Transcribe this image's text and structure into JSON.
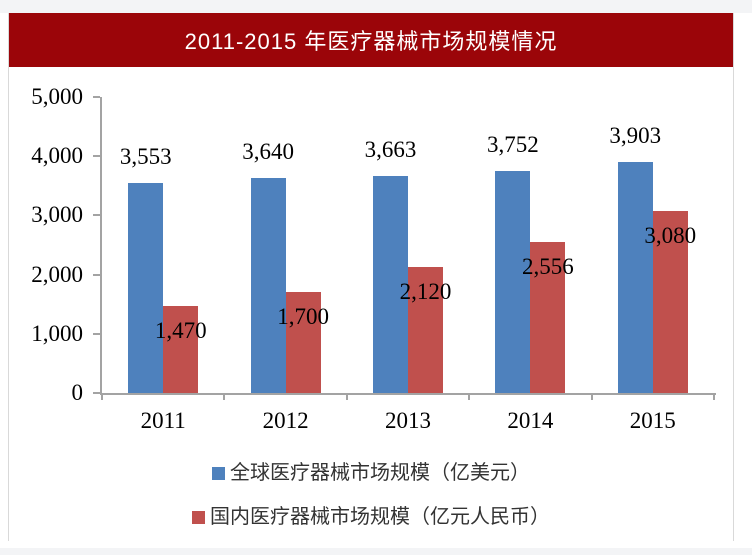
{
  "banner": {
    "title": "2011-2015 年医疗器械市场规模情况"
  },
  "chart_data": {
    "type": "bar",
    "title": "2011-2015 年医疗器械市场规模情况",
    "categories": [
      "2011",
      "2012",
      "2013",
      "2014",
      "2015"
    ],
    "series": [
      {
        "name": "全球医疗器械市场规模（亿美元）",
        "color": "#4E81BD",
        "values": [
          3553,
          3640,
          3663,
          3752,
          3903
        ],
        "data_labels": [
          "3,553",
          "3,640",
          "3,663",
          "3,752",
          "3,903"
        ],
        "label_position": "outside-end"
      },
      {
        "name": "国内医疗器械市场规模（亿元人民币）",
        "color": "#C0504D",
        "values": [
          1470,
          1700,
          2120,
          2556,
          3080
        ],
        "data_labels": [
          "1,470",
          "1,700",
          "2,120",
          "2,556",
          "3,080"
        ],
        "label_position": "inside-end"
      }
    ],
    "y_axis": {
      "min": 0,
      "max": 5000,
      "step": 1000,
      "tick_labels": [
        "0",
        "1,000",
        "2,000",
        "3,000",
        "4,000",
        "5,000"
      ]
    },
    "grid": false,
    "legend_position": "bottom",
    "colors": {
      "banner_background": "#9B0509",
      "banner_text": "#FFFFFF",
      "axis": "#A3A3A3",
      "number_text": "#000000",
      "legend_text": "#333333"
    }
  }
}
